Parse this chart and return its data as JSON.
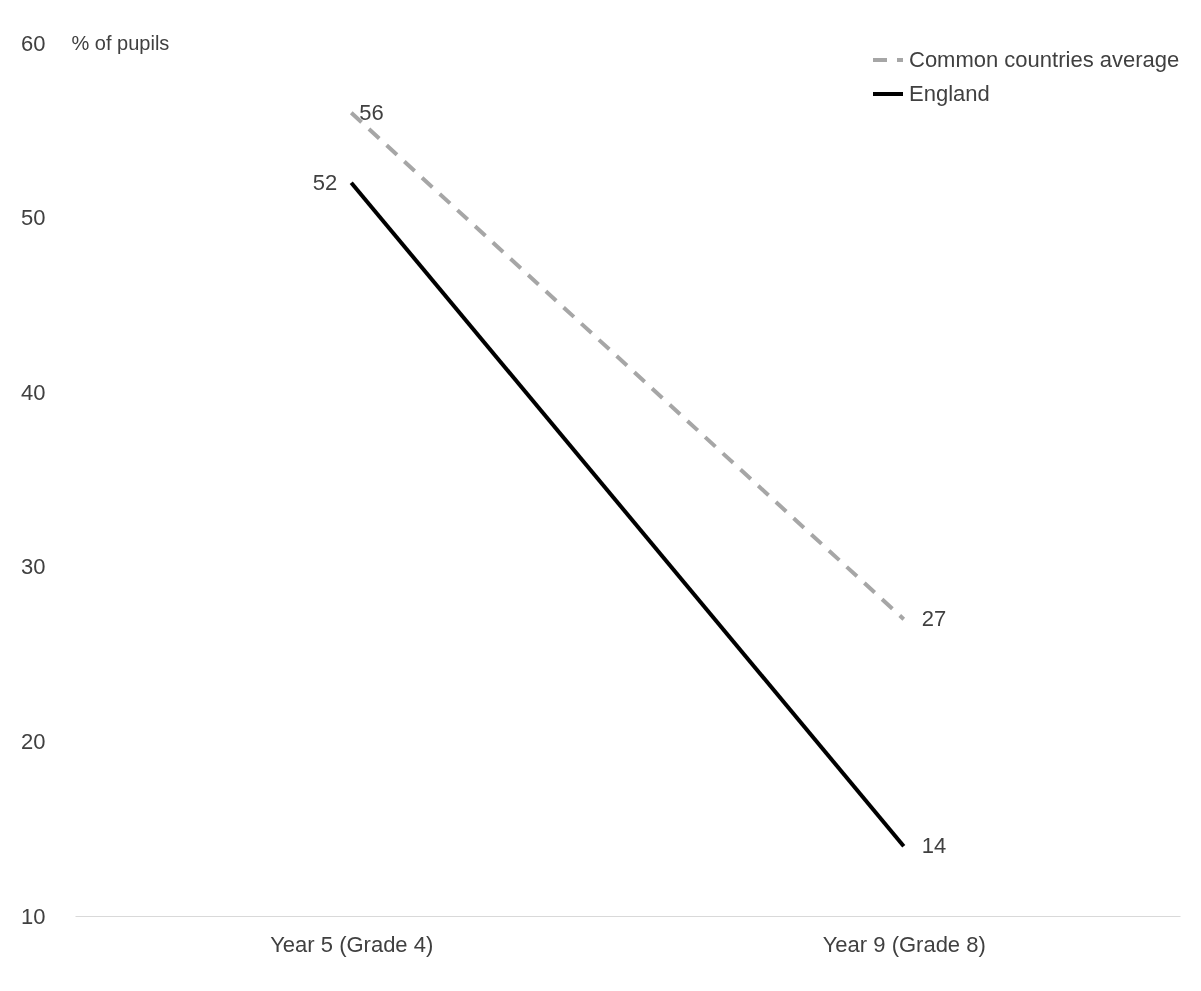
{
  "chart_data": {
    "type": "line",
    "ylabel": "% of pupils",
    "categories": [
      "Year 5 (Grade 4)",
      "Year 9 (Grade 8)"
    ],
    "series": [
      {
        "name": "Common countries average",
        "color": "#a6a6a6",
        "line_style": "dashed",
        "values": [
          56,
          27
        ]
      },
      {
        "name": "England",
        "color": "#000000",
        "line_style": "solid",
        "values": [
          52,
          14
        ]
      }
    ],
    "ylim": [
      10,
      60
    ],
    "yticks": [
      10,
      20,
      30,
      40,
      50,
      60
    ],
    "grid": false,
    "legend": "top right",
    "data_labels": true,
    "marker": "none"
  }
}
